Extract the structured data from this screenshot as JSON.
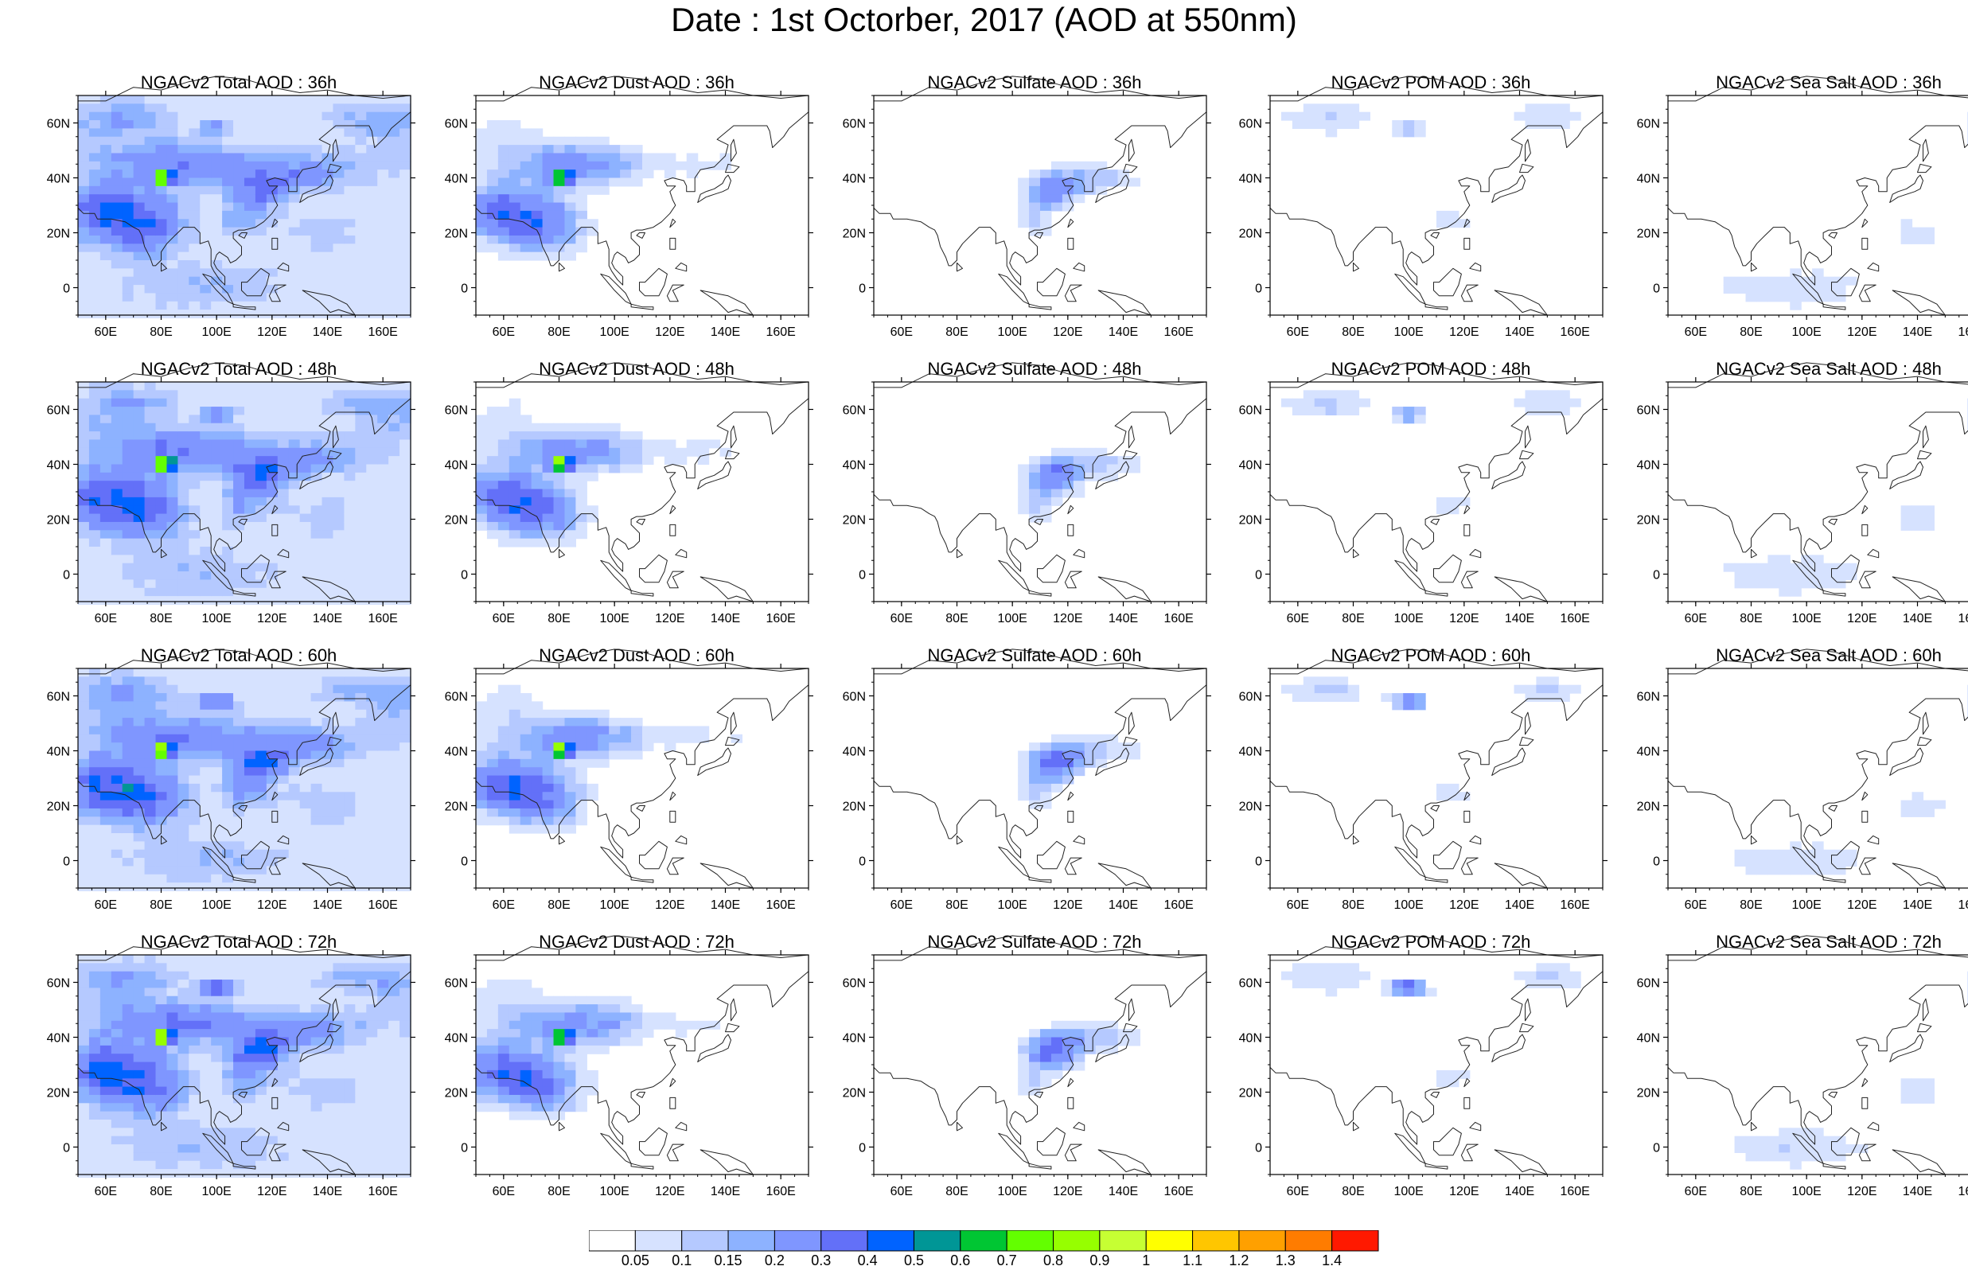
{
  "title": "Date : 1st Octorber, 2017 (AOD at 550nm)",
  "panels": [
    {
      "title": "NGACv2 Total AOD : 36h",
      "species": "total",
      "hour": 36
    },
    {
      "title": "NGACv2 Dust AOD : 36h",
      "species": "dust",
      "hour": 36
    },
    {
      "title": "NGACv2 Sulfate AOD : 36h",
      "species": "sulfate",
      "hour": 36
    },
    {
      "title": "NGACv2 POM AOD : 36h",
      "species": "pom",
      "hour": 36
    },
    {
      "title": "NGACv2 Sea Salt AOD : 36h",
      "species": "seasalt",
      "hour": 36
    },
    {
      "title": "NGACv2 Total AOD : 48h",
      "species": "total",
      "hour": 48
    },
    {
      "title": "NGACv2 Dust AOD : 48h",
      "species": "dust",
      "hour": 48
    },
    {
      "title": "NGACv2 Sulfate AOD : 48h",
      "species": "sulfate",
      "hour": 48
    },
    {
      "title": "NGACv2 POM AOD : 48h",
      "species": "pom",
      "hour": 48
    },
    {
      "title": "NGACv2 Sea Salt AOD : 48h",
      "species": "seasalt",
      "hour": 48
    },
    {
      "title": "NGACv2 Total AOD : 60h",
      "species": "total",
      "hour": 60
    },
    {
      "title": "NGACv2 Dust AOD : 60h",
      "species": "dust",
      "hour": 60
    },
    {
      "title": "NGACv2 Sulfate AOD : 60h",
      "species": "sulfate",
      "hour": 60
    },
    {
      "title": "NGACv2 POM AOD : 60h",
      "species": "pom",
      "hour": 60
    },
    {
      "title": "NGACv2 Sea Salt AOD : 60h",
      "species": "seasalt",
      "hour": 60
    },
    {
      "title": "NGACv2 Total AOD : 72h",
      "species": "total",
      "hour": 72
    },
    {
      "title": "NGACv2 Dust AOD : 72h",
      "species": "dust",
      "hour": 72
    },
    {
      "title": "NGACv2 Sulfate AOD : 72h",
      "species": "sulfate",
      "hour": 72
    },
    {
      "title": "NGACv2 POM AOD : 72h",
      "species": "pom",
      "hour": 72
    },
    {
      "title": "NGACv2 Sea Salt  AOD : 72h",
      "species": "seasalt",
      "hour": 72
    }
  ],
  "map_extent": {
    "lon_min": 50,
    "lon_max": 170,
    "lat_min": -10,
    "lat_max": 70
  },
  "lat_ticks": [
    {
      "value": 60,
      "label": "60N"
    },
    {
      "value": 40,
      "label": "40N"
    },
    {
      "value": 20,
      "label": "20N"
    },
    {
      "value": 0,
      "label": "0"
    }
  ],
  "lon_ticks": [
    {
      "value": 60,
      "label": "60E"
    },
    {
      "value": 80,
      "label": "80E"
    },
    {
      "value": 100,
      "label": "100E"
    },
    {
      "value": 120,
      "label": "120E"
    },
    {
      "value": 140,
      "label": "140E"
    },
    {
      "value": 160,
      "label": "160E"
    }
  ],
  "colorbar": {
    "colors": [
      "#ffffff",
      "#d6e2ff",
      "#b5c9ff",
      "#8db2ff",
      "#7f96ff",
      "#6370f8",
      "#0063ff",
      "#009696",
      "#00c633",
      "#63ff00",
      "#96ff00",
      "#c6ff33",
      "#ffff00",
      "#ffc600",
      "#ffa000",
      "#ff7c00",
      "#ff1900"
    ],
    "labels": [
      "0.05",
      "0.1",
      "0.15",
      "0.2",
      "0.3",
      "0.4",
      "0.5",
      "0.6",
      "0.7",
      "0.8",
      "0.9",
      "1",
      "1.1",
      "1.2",
      "1.3",
      "1.4"
    ]
  }
}
